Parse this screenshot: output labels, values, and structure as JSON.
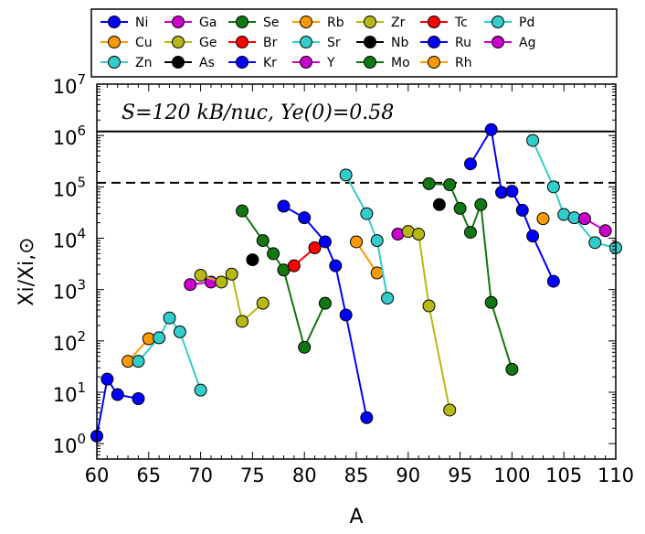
{
  "chart_data": {
    "type": "line",
    "title": "",
    "annotation": "S = 120 k_B/nuc, Y_e(0) = 0.58",
    "annotation_text": "S=120 kB/nuc, Ye(0)=0.58",
    "xlabel": "A",
    "ylabel": "Xi/Xi,⊙",
    "xlim": [
      60,
      110
    ],
    "ylim_log10": [
      -0.3,
      7
    ],
    "x_ticks": [
      60,
      65,
      70,
      75,
      80,
      85,
      90,
      95,
      100,
      105,
      110
    ],
    "x_tick_labels": [
      "60",
      "65",
      "70",
      "75",
      "80",
      "85",
      "90",
      "95",
      "100",
      "105",
      "110"
    ],
    "y_tick_exponents": [
      0,
      1,
      2,
      3,
      4,
      5,
      6,
      7
    ],
    "y_tick_base": "10",
    "hlines": [
      {
        "y": 1200000,
        "style": "solid"
      },
      {
        "y": 120000,
        "style": "dashed"
      }
    ],
    "legend_placement": "top-center, outside plot",
    "series": [
      {
        "name": "Ni",
        "color": "#0000ff",
        "x": [
          60,
          61,
          62,
          64
        ],
        "y": [
          1.4,
          18,
          9,
          7.5
        ]
      },
      {
        "name": "Cu",
        "color": "#ff9900",
        "x": [
          63,
          65
        ],
        "y": [
          40,
          110
        ]
      },
      {
        "name": "Zn",
        "color": "#33cccc",
        "x": [
          64,
          66,
          67,
          68,
          70
        ],
        "y": [
          40,
          115,
          280,
          150,
          11
        ]
      },
      {
        "name": "Ga",
        "color": "#cc00cc",
        "x": [
          69,
          71
        ],
        "y": [
          1250,
          1400
        ]
      },
      {
        "name": "Ge",
        "color": "#b8b814",
        "x": [
          70,
          72,
          73,
          74,
          76
        ],
        "y": [
          1900,
          1400,
          2000,
          240,
          540
        ]
      },
      {
        "name": "As",
        "color": "#000000",
        "x": [
          75
        ],
        "y": [
          3800
        ]
      },
      {
        "name": "Se",
        "color": "#117711",
        "x": [
          74,
          76,
          77,
          78,
          80,
          82
        ],
        "y": [
          34000,
          9000,
          5000,
          2400,
          75,
          540
        ]
      },
      {
        "name": "Br",
        "color": "#ff0000",
        "x": [
          79,
          81
        ],
        "y": [
          2900,
          6500
        ]
      },
      {
        "name": "Kr",
        "color": "#0000ff",
        "x": [
          78,
          80,
          82,
          83,
          84,
          86
        ],
        "y": [
          42000,
          25000,
          8500,
          2900,
          320,
          3.2
        ]
      },
      {
        "name": "Rb",
        "color": "#ff9900",
        "x": [
          85,
          87
        ],
        "y": [
          8500,
          2100
        ]
      },
      {
        "name": "Sr",
        "color": "#33cccc",
        "x": [
          84,
          86,
          87,
          88
        ],
        "y": [
          170000,
          30000,
          9000,
          680
        ]
      },
      {
        "name": "Y",
        "color": "#cc00cc",
        "x": [
          89
        ],
        "y": [
          12000
        ]
      },
      {
        "name": "Zr",
        "color": "#b8b814",
        "x": [
          90,
          91,
          92,
          94
        ],
        "y": [
          13500,
          12000,
          480,
          4.5
        ]
      },
      {
        "name": "Nb",
        "color": "#000000",
        "x": [
          93
        ],
        "y": [
          45000
        ]
      },
      {
        "name": "Mo",
        "color": "#117711",
        "x": [
          92,
          94,
          95,
          96,
          97,
          98,
          100
        ],
        "y": [
          115000,
          110000,
          38000,
          13000,
          45000,
          560,
          28
        ]
      },
      {
        "name": "Tc",
        "color": "#ff0000",
        "x": [],
        "y": []
      },
      {
        "name": "Ru",
        "color": "#0000ff",
        "x": [
          96,
          98,
          99,
          100,
          101,
          102,
          104
        ],
        "y": [
          280000,
          1300000,
          78000,
          82000,
          35000,
          11000,
          1450
        ]
      },
      {
        "name": "Rh",
        "color": "#ff9900",
        "x": [
          103
        ],
        "y": [
          24000
        ]
      },
      {
        "name": "Pd",
        "color": "#33cccc",
        "x": [
          102,
          104,
          105,
          106,
          108,
          110
        ],
        "y": [
          800000,
          100000,
          29000,
          25000,
          8200,
          6500
        ]
      },
      {
        "name": "Ag",
        "color": "#cc00cc",
        "x": [
          107,
          109
        ],
        "y": [
          24000,
          14000
        ]
      }
    ]
  }
}
